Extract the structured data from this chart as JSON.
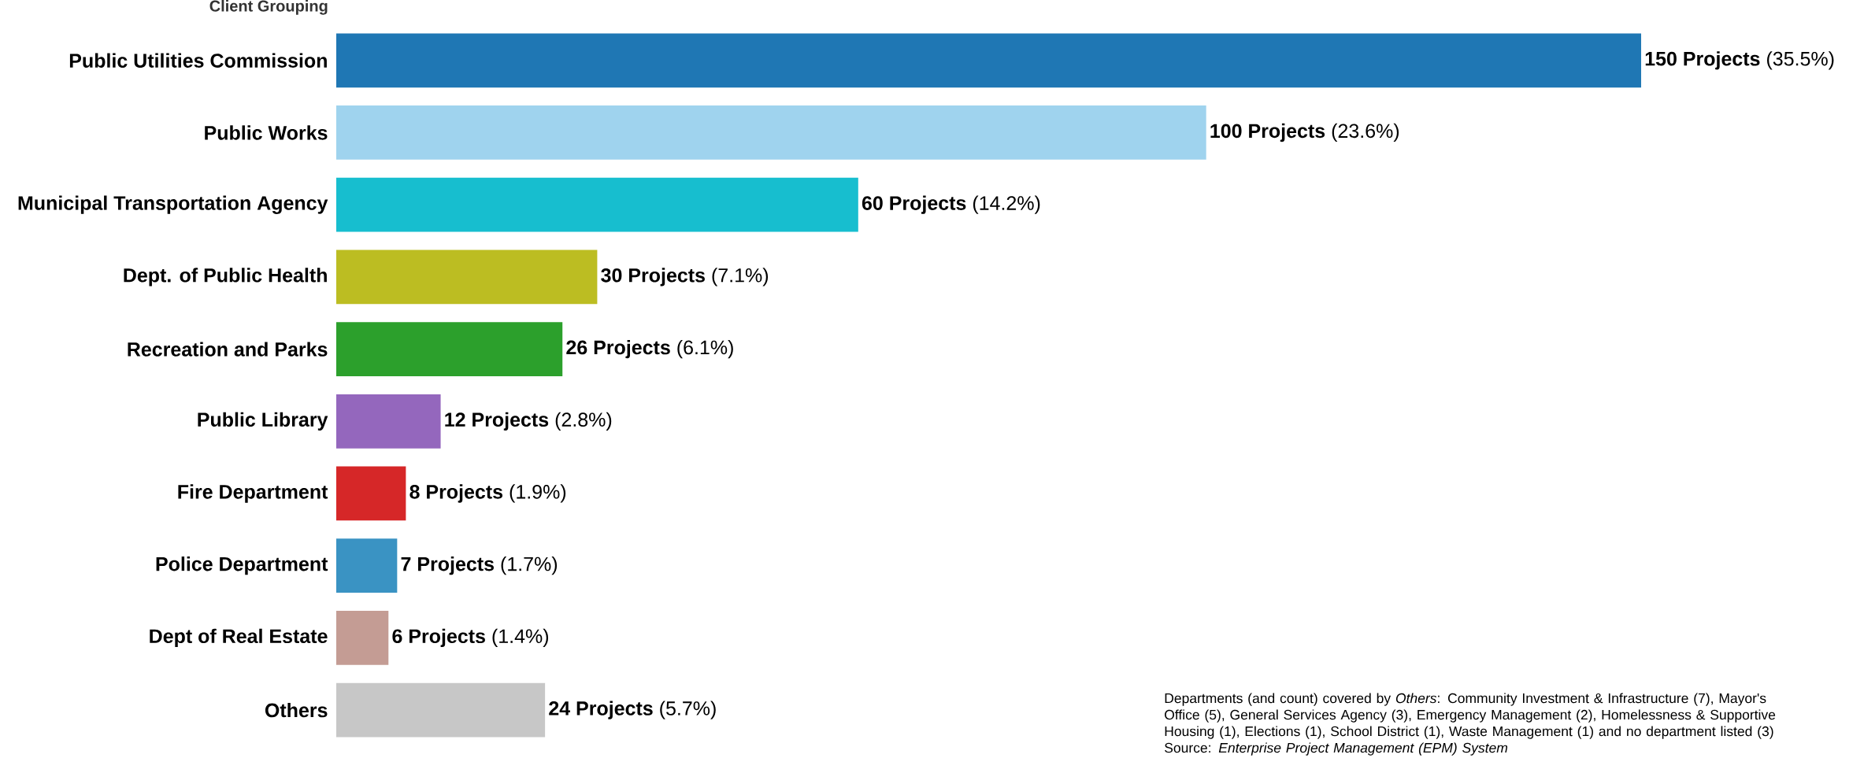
{
  "chart_data": {
    "type": "bar",
    "orientation": "horizontal",
    "ylabel": "Client Grouping",
    "categories": [
      "Public Utilities Commission",
      "Public Works",
      "Municipal Transportation Agency",
      "Dept. of Public Health",
      "Recreation and Parks",
      "Public Library",
      "Fire Department",
      "Police Department",
      "Dept of Real Estate",
      "Others"
    ],
    "values": [
      150,
      100,
      60,
      30,
      26,
      12,
      8,
      7,
      6,
      24
    ],
    "value_labels": [
      "**150 Projects** (35.5%)",
      "**100 Projects** (23.6%)",
      "**60 Projects** (14.2%)",
      "**30 Projects** (7.1%)",
      "**26 Projects** (6.1%)",
      "**12 Projects** (2.8%)",
      "**8 Projects** (1.9%)",
      "**7 Projects** (1.7%)",
      "**6 Projects** (1.4%)",
      "**24 Projects** (5.7%)"
    ],
    "colors": [
      "#1f77b4",
      "#9fd3ee",
      "#17becf",
      "#bcbd22",
      "#2ca02c",
      "#9467bd",
      "#d62728",
      "#3a93c3",
      "#c49c94",
      "#c7c7c7"
    ],
    "annotations": [
      "Departments (and count) covered by *Others*: Community Investment & Infrastructure (7), Mayor's Office (5), General Services Agency (3), Emergency Management (2), Homelessness & Supportive Housing (1), Elections (1), School District (1), Waste Management (1) and no department listed (3)",
      "Source: *Enterprise Project Management (EPM) System*"
    ]
  }
}
